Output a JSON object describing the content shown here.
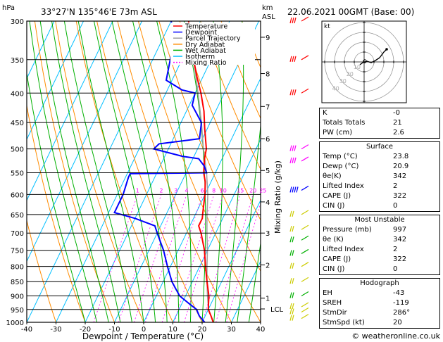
{
  "header": {
    "location": "33°27'N  135°46'E  73m  ASL",
    "datetime": "22.06.2021  00GMT  (Base: 00)",
    "hpa_label": "hPa",
    "km_label": "km",
    "asl_label": "ASL",
    "watermark": "© weatheronline.co.uk"
  },
  "colors": {
    "temperature": "#ff0000",
    "dewpoint": "#0000ff",
    "parcel": "#a0a0a0",
    "dry_adiabat": "#ff8c00",
    "wet_adiabat": "#00b000",
    "isotherm": "#00bfff",
    "mixing_ratio": "#ff00ff"
  },
  "chart_data": {
    "type": "line",
    "subtype": "skew-T log-P diagram",
    "xlabel": "Dewpoint / Temperature (°C)",
    "ylabel_right": "Mixing Ratio (g/kg)",
    "x_ticks": [
      -40,
      -30,
      -20,
      -10,
      0,
      10,
      20,
      30,
      40
    ],
    "pressure_levels": [
      300,
      350,
      400,
      450,
      500,
      550,
      600,
      650,
      700,
      750,
      800,
      850,
      900,
      950,
      1000
    ],
    "km_ticks": [
      {
        "km": "1",
        "p": 908
      },
      {
        "km": "2",
        "p": 795
      },
      {
        "km": "3",
        "p": 700
      },
      {
        "km": "4",
        "p": 618
      },
      {
        "km": "5",
        "p": 545
      },
      {
        "km": "6",
        "p": 480
      },
      {
        "km": "7",
        "p": 422
      },
      {
        "km": "8",
        "p": 370
      },
      {
        "km": "9",
        "p": 320
      }
    ],
    "lcl": {
      "label": "LCL",
      "p": 948
    },
    "mixing_ratio_labels": [
      "1",
      "2",
      "3",
      "4",
      "6",
      "8",
      "10",
      "15",
      "20",
      "25"
    ],
    "legend": [
      "Temperature",
      "Dewpoint",
      "Parcel Trajectory",
      "Dry Adiabat",
      "Wet Adiabat",
      "Isotherm",
      "Mixing Ratio"
    ],
    "series": [
      {
        "name": "Temperature",
        "points": [
          [
            1000,
            23.8
          ],
          [
            975,
            22
          ],
          [
            950,
            20
          ],
          [
            925,
            19
          ],
          [
            900,
            18
          ],
          [
            850,
            15
          ],
          [
            800,
            12
          ],
          [
            750,
            9
          ],
          [
            700,
            5
          ],
          [
            680,
            3
          ],
          [
            660,
            3
          ],
          [
            640,
            2
          ],
          [
            600,
            0
          ],
          [
            570,
            -2
          ],
          [
            550,
            -4
          ],
          [
            520,
            -6
          ],
          [
            500,
            -7
          ],
          [
            460,
            -11
          ],
          [
            430,
            -14
          ],
          [
            400,
            -18
          ],
          [
            375,
            -22
          ],
          [
            350,
            -26
          ],
          [
            330,
            -30
          ],
          [
            300,
            -34
          ]
        ]
      },
      {
        "name": "Dewpoint",
        "points": [
          [
            1000,
            20.9
          ],
          [
            975,
            18
          ],
          [
            950,
            16
          ],
          [
            925,
            12
          ],
          [
            900,
            8
          ],
          [
            870,
            5
          ],
          [
            850,
            3
          ],
          [
            800,
            -1
          ],
          [
            750,
            -5
          ],
          [
            700,
            -10
          ],
          [
            680,
            -12
          ],
          [
            660,
            -20
          ],
          [
            645,
            -28
          ],
          [
            600,
            -28
          ],
          [
            560,
            -29
          ],
          [
            552,
            -29
          ],
          [
            550,
            -3
          ],
          [
            535,
            -5
          ],
          [
            520,
            -8
          ],
          [
            515,
            -14
          ],
          [
            500,
            -25
          ],
          [
            490,
            -24
          ],
          [
            480,
            -11
          ],
          [
            450,
            -13
          ],
          [
            420,
            -19
          ],
          [
            400,
            -20
          ],
          [
            395,
            -25
          ],
          [
            380,
            -32
          ],
          [
            350,
            -34
          ],
          [
            320,
            -36
          ],
          [
            300,
            -40
          ]
        ]
      },
      {
        "name": "Parcel Trajectory",
        "points": [
          [
            1000,
            23.8
          ],
          [
            948,
            20
          ],
          [
            900,
            17.5
          ],
          [
            850,
            15
          ],
          [
            800,
            12.5
          ],
          [
            750,
            10
          ],
          [
            700,
            7
          ],
          [
            650,
            4
          ],
          [
            600,
            1
          ],
          [
            550,
            -3
          ],
          [
            500,
            -8
          ],
          [
            450,
            -13
          ],
          [
            400,
            -19
          ],
          [
            350,
            -26
          ],
          [
            300,
            -34
          ]
        ]
      }
    ]
  },
  "hodograph": {
    "label": "kt",
    "rings": [
      "10",
      "20",
      "30",
      "40"
    ]
  },
  "indices": [
    {
      "label": "K",
      "value": "-0"
    },
    {
      "label": "Totals Totals",
      "value": "21"
    },
    {
      "label": "PW (cm)",
      "value": "2.6"
    }
  ],
  "surface": {
    "title": "Surface",
    "rows": [
      {
        "label": "Temp (°C)",
        "value": "23.8"
      },
      {
        "label": "Dewp (°C)",
        "value": "20.9"
      },
      {
        "label": "θe(K)",
        "value": "342"
      },
      {
        "label": "Lifted Index",
        "value": "2"
      },
      {
        "label": "CAPE (J)",
        "value": "322"
      },
      {
        "label": "CIN (J)",
        "value": "0"
      }
    ]
  },
  "most_unstable": {
    "title": "Most Unstable",
    "rows": [
      {
        "label": "Pressure (mb)",
        "value": "997"
      },
      {
        "label": "θe (K)",
        "value": "342"
      },
      {
        "label": "Lifted Index",
        "value": "2"
      },
      {
        "label": "CAPE (J)",
        "value": "322"
      },
      {
        "label": "CIN (J)",
        "value": "0"
      }
    ]
  },
  "hodograph_table": {
    "title": "Hodograph",
    "rows": [
      {
        "label": "EH",
        "value": "-43"
      },
      {
        "label": "SREH",
        "value": "-119"
      },
      {
        "label": "StmDir",
        "value": "286°"
      },
      {
        "label": "StmSpd (kt)",
        "value": "20"
      }
    ]
  }
}
